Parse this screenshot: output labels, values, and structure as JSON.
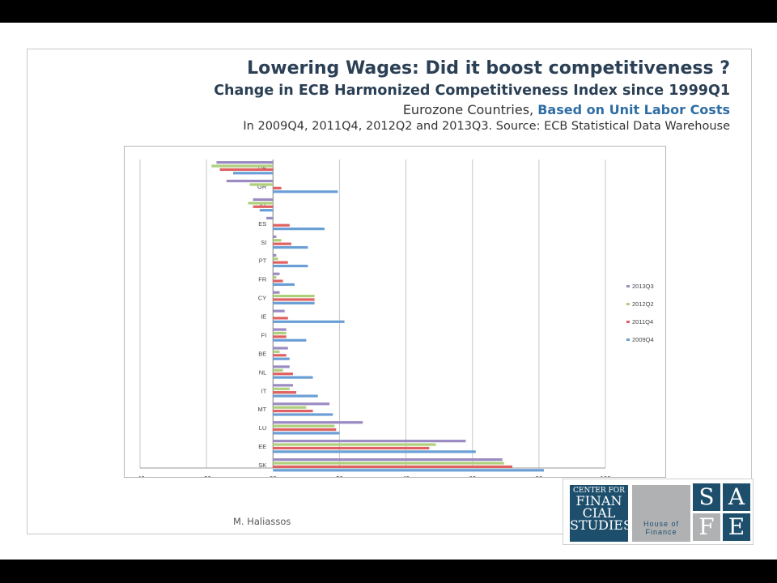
{
  "titles": {
    "line1": "Lowering Wages:  Did it boost competitiveness ?",
    "line2": "Change in ECB Harmonized Competitiveness Index since 1999Q1",
    "line3_plain": "Eurozone Countries, ",
    "line3_highlight": "Based on Unit Labor Costs",
    "line4": "In 2009Q4, 2011Q4, 2012Q2 and 2013Q3. Source: ECB Statistical Data Warehouse"
  },
  "author": "M. Haliassos",
  "logo": {
    "cfs_small": "CENTER FOR",
    "cfs_lines": [
      "FINAN",
      "CIAL",
      "STUDIES"
    ],
    "hof_lines": [
      "House of",
      "Finance"
    ],
    "safe_letters": [
      "S",
      "A",
      "F",
      "E"
    ]
  },
  "colors": {
    "2013Q3": "#9b8bc2",
    "2012Q2": "#aed07a",
    "2011Q4": "#e06161",
    "2009Q4": "#6a9fd6"
  },
  "chart_data": {
    "type": "bar",
    "orientation": "horizontal",
    "categories": [
      "DE",
      "GR",
      "AT",
      "ES",
      "SI",
      "PT",
      "FR",
      "CY",
      "IE",
      "FI",
      "BE",
      "NL",
      "IT",
      "MT",
      "LU",
      "EE",
      "SK"
    ],
    "series": [
      {
        "name": "2013Q3",
        "values": [
          -17,
          -14,
          -6,
          -2,
          1,
          1,
          2,
          2,
          3.5,
          4,
          4.5,
          5,
          6,
          17,
          27,
          58,
          69
        ]
      },
      {
        "name": "2012Q2",
        "values": [
          -18.5,
          -7,
          -7.5,
          0,
          2.5,
          1.5,
          1,
          12.5,
          0,
          4,
          2,
          3,
          5,
          10,
          18.5,
          49,
          69.5
        ]
      },
      {
        "name": "2011Q4",
        "values": [
          -16,
          2.5,
          -6,
          5,
          5.5,
          4.5,
          3,
          12.5,
          4.5,
          4,
          4,
          6,
          7,
          12,
          19,
          47,
          72
        ]
      },
      {
        "name": "2009Q4",
        "values": [
          -12,
          19.5,
          -4,
          15.5,
          10.5,
          10.5,
          6.5,
          12.5,
          21.5,
          10,
          5,
          12,
          13.5,
          18,
          20,
          61,
          81.5
        ]
      }
    ],
    "xlim": [
      -40,
      100
    ],
    "xticks": [
      "-40",
      "-20",
      "00",
      "20",
      "40",
      "60",
      "80",
      "100"
    ],
    "legend": [
      "2013Q3",
      "2012Q2",
      "2011Q4",
      "2009Q4"
    ],
    "legend_position": "right",
    "grid": true
  }
}
